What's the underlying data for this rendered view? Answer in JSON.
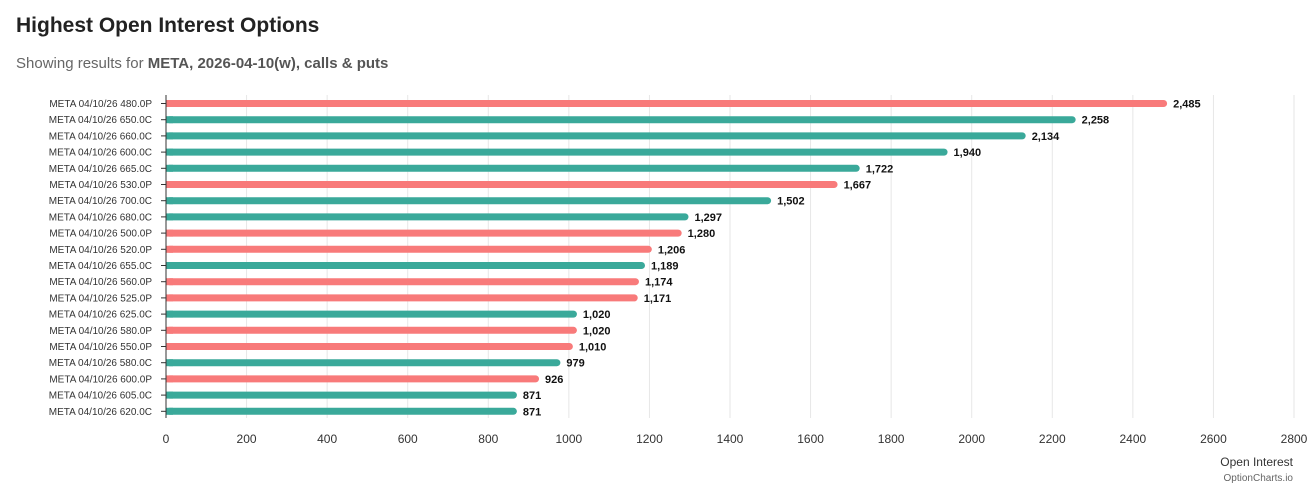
{
  "header": {
    "title": "Highest Open Interest Options",
    "subtitle_prefix": "Showing results for",
    "subtitle_bold": "META, 2026-04-10(w), calls & puts"
  },
  "colors": {
    "call": "#3aa99a",
    "put": "#f87a7a",
    "grid": "#e6e6e6",
    "axis": "#333333"
  },
  "credit": "OptionCharts.io",
  "chart_data": {
    "type": "bar",
    "orientation": "horizontal",
    "title": "Highest Open Interest Options",
    "xlabel": "Open Interest",
    "ylabel": "",
    "xlim": [
      0,
      2800
    ],
    "xticks": [
      0,
      200,
      400,
      600,
      800,
      1000,
      1200,
      1400,
      1600,
      1800,
      2000,
      2200,
      2400,
      2600,
      2800
    ],
    "grid": true,
    "categories": [
      "META 04/10/26 480.0P",
      "META 04/10/26 650.0C",
      "META 04/10/26 660.0C",
      "META 04/10/26 600.0C",
      "META 04/10/26 665.0C",
      "META 04/10/26 530.0P",
      "META 04/10/26 700.0C",
      "META 04/10/26 680.0C",
      "META 04/10/26 500.0P",
      "META 04/10/26 520.0P",
      "META 04/10/26 655.0C",
      "META 04/10/26 560.0P",
      "META 04/10/26 525.0P",
      "META 04/10/26 625.0C",
      "META 04/10/26 580.0P",
      "META 04/10/26 550.0P",
      "META 04/10/26 580.0C",
      "META 04/10/26 600.0P",
      "META 04/10/26 605.0C",
      "META 04/10/26 620.0C"
    ],
    "values": [
      2485,
      2258,
      2134,
      1940,
      1722,
      1667,
      1502,
      1297,
      1280,
      1206,
      1189,
      1174,
      1171,
      1020,
      1020,
      1010,
      979,
      926,
      871,
      871
    ],
    "value_labels": [
      "2,485",
      "2,258",
      "2,134",
      "1,940",
      "1,722",
      "1,667",
      "1,502",
      "1,297",
      "1,280",
      "1,206",
      "1,189",
      "1,174",
      "1,171",
      "1,020",
      "1,020",
      "1,010",
      "979",
      "926",
      "871",
      "871"
    ],
    "option_types": [
      "put",
      "call",
      "call",
      "call",
      "call",
      "put",
      "call",
      "call",
      "put",
      "put",
      "call",
      "put",
      "put",
      "call",
      "put",
      "put",
      "call",
      "put",
      "call",
      "call"
    ]
  }
}
